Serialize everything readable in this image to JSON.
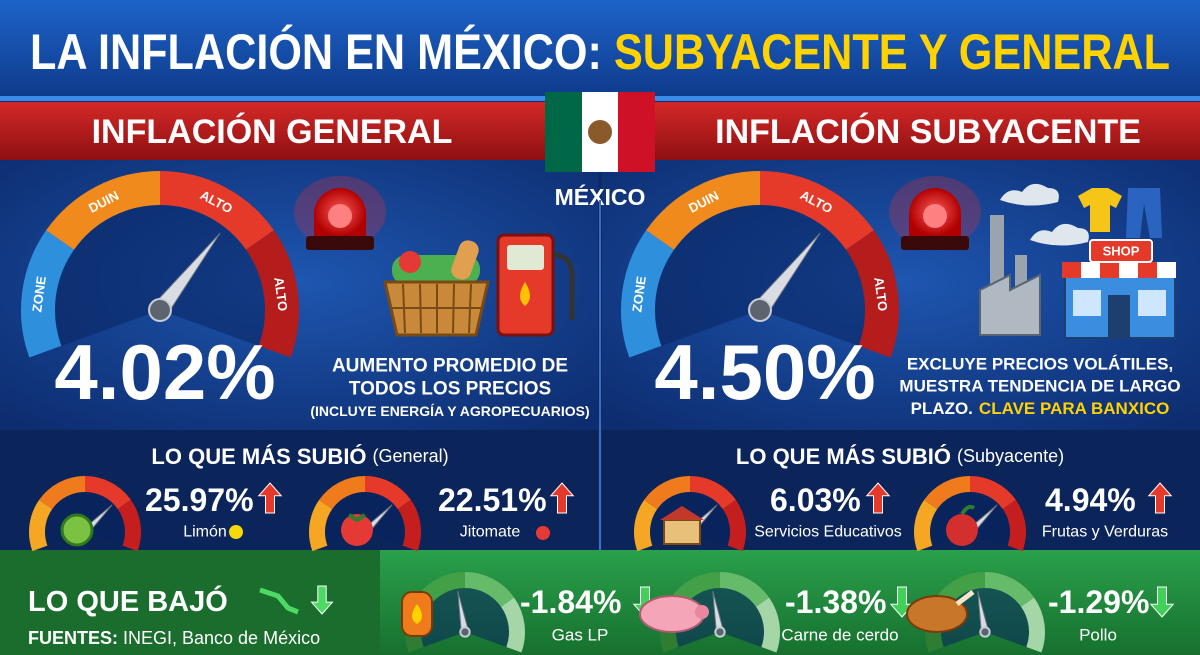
{
  "title": {
    "part1": "LA INFLACIÓN EN MÉXICO:",
    "part2": "SUBYACENTE Y GENERAL"
  },
  "country": "MÉXICO",
  "general": {
    "heading": "INFLACIÓN GENERAL",
    "gauge_labels": [
      "ZONE",
      "DUIN",
      "ALTO",
      "ALTO"
    ],
    "rate": "4.02%",
    "description": [
      "AUMENTO PROMEDIO DE",
      "TODOS LOS PRECIOS"
    ],
    "note": "(INCLUYE ENERGÍA Y AGROPECUARIOS)",
    "top_heading": "LO QUE MÁS SUBIÓ",
    "top_qualifier": "(General)",
    "items": [
      {
        "value": "25.97%",
        "label": "Limón"
      },
      {
        "value": "22.51%",
        "label": "Jitomate"
      }
    ]
  },
  "core": {
    "heading": "INFLACIÓN SUBYACENTE",
    "gauge_labels": [
      "ZONE",
      "DUIN",
      "ALTO",
      "ALTO"
    ],
    "rate": "4.50%",
    "description": [
      "EXCLUYE PRECIOS VOLÁTILES,",
      "MUESTRA TENDENCIA DE LARGO",
      "PLAZO."
    ],
    "highlight": "CLAVE PARA BANXICO",
    "shop_sign": "SHOP",
    "top_heading": "LO QUE MÁS SUBIÓ",
    "top_qualifier": "(Subyacente)",
    "items": [
      {
        "value": "6.03%",
        "label": "Servicios Educativos"
      },
      {
        "value": "4.94%",
        "label": "Frutas y Verduras"
      }
    ]
  },
  "fell": {
    "heading": "LO QUE BAJÓ",
    "sources_label": "FUENTES:",
    "sources": "INEGI, Banco de México",
    "items": [
      {
        "value": "-1.84%",
        "label": "Gas LP"
      },
      {
        "value": "-1.38%",
        "label": "Carne de cerdo"
      },
      {
        "value": "-1.29%",
        "label": "Pollo"
      }
    ]
  }
}
